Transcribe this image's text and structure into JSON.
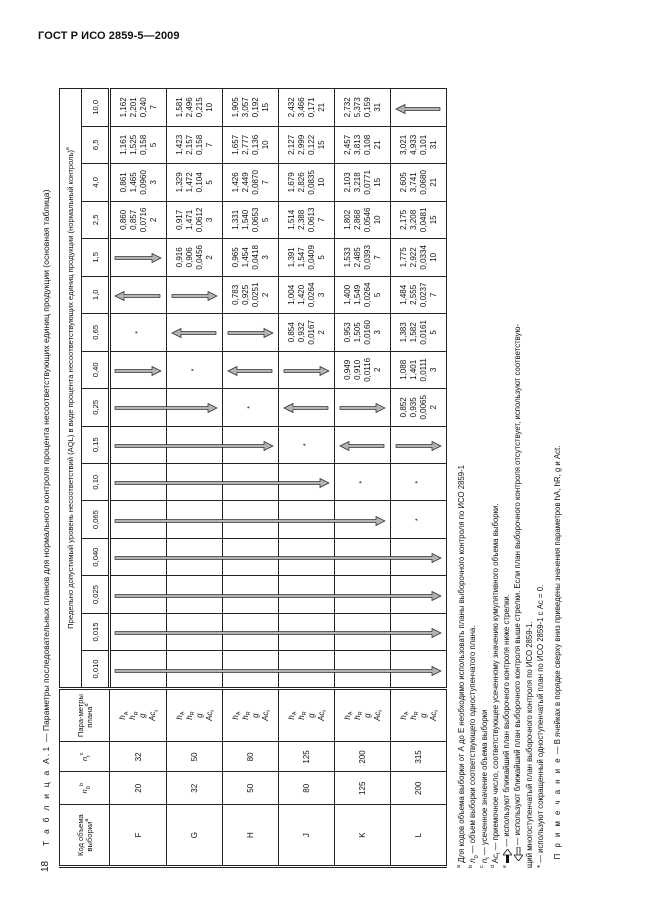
{
  "header": {
    "doc_id": "ГОСТ Р ИСО 2859-5—2009",
    "page_number": "18"
  },
  "caption": {
    "label": "Т а б л и ц а  А.1",
    "text": " — Параметры последовательных планов для нормального контроля процента несоответствующих единиц продукции (основная таблица)"
  },
  "table": {
    "head": {
      "code": "Код объема выборки",
      "code_sup": "a",
      "n0": "n",
      "n0_sub": "0",
      "n0_sup": "b",
      "nt": "n",
      "nt_sub": "t",
      "nt_sup": "c",
      "param": "Пара-метры плана",
      "param_sup": "d",
      "aql_group": "Предельно допустимый уровень несоответствий (AQL) в виде процента несоответствующих единиц продукции (нормальный контроль)",
      "aql_group_sup": "e"
    },
    "aql_values": [
      "0,010",
      "0,015",
      "0,025",
      "0,040",
      "0,065",
      "0,10",
      "0,15",
      "0,25",
      "0,40",
      "0,65",
      "1,0",
      "1,5",
      "2,5",
      "4,0",
      "6,5",
      "10,0"
    ],
    "params": [
      {
        "main": "h",
        "sub": "A"
      },
      {
        "main": "h",
        "sub": "R"
      },
      {
        "main": "g",
        "sub": ""
      },
      {
        "main": "Ac",
        "sub": "t"
      }
    ],
    "arrow_colors": {
      "fill": "#b3b3b3",
      "stroke": "#2a2a2a"
    },
    "rows": [
      {
        "code": "F",
        "n0": "20",
        "nt": "32",
        "cells": [
          "down",
          "down",
          "down",
          "down",
          "down",
          "down",
          "down",
          "down",
          "down",
          "*",
          "up",
          "down",
          [
            "0,860",
            "0,857",
            "0,0716",
            "2"
          ],
          [
            "0,861",
            "1,465",
            "0,0960",
            "3"
          ],
          [
            "1,161",
            "1,525",
            "0,158",
            "5"
          ],
          [
            "1,162",
            "2,201",
            "0,240",
            "7"
          ]
        ]
      },
      {
        "code": "G",
        "n0": "32",
        "nt": "50",
        "cells": [
          "down",
          "down",
          "down",
          "down",
          "down",
          "down",
          "down",
          "down",
          "*",
          "up",
          "down",
          [
            "0,916",
            "0,906",
            "0,0456",
            "2"
          ],
          [
            "0,917",
            "1,471",
            "0,0612",
            "3"
          ],
          [
            "1,329",
            "1,472",
            "0,104",
            "5"
          ],
          [
            "1,423",
            "2,157",
            "0,158",
            "7"
          ],
          [
            "1,581",
            "2,496",
            "0,215",
            "10"
          ]
        ]
      },
      {
        "code": "H",
        "n0": "50",
        "nt": "80",
        "cells": [
          "down",
          "down",
          "down",
          "down",
          "down",
          "down",
          "down",
          "*",
          "up",
          "down",
          [
            "0,783",
            "0,925",
            "0,0251",
            "2"
          ],
          [
            "0,965",
            "1,454",
            "0,0418",
            "3"
          ],
          [
            "1,331",
            "1,540",
            "0,0653",
            "5"
          ],
          [
            "1,426",
            "2,449",
            "0,0870",
            "7"
          ],
          [
            "1,657",
            "2,777",
            "0,136",
            "10"
          ],
          [
            "1,905",
            "3,057",
            "0,192",
            "15"
          ]
        ]
      },
      {
        "code": "J",
        "n0": "80",
        "nt": "125",
        "cells": [
          "down",
          "down",
          "down",
          "down",
          "down",
          "down",
          "*",
          "up",
          "down",
          [
            "0,854",
            "0,932",
            "0,0167",
            "2"
          ],
          [
            "1,004",
            "1,420",
            "0,0264",
            "3"
          ],
          [
            "1,391",
            "1,547",
            "0,0409",
            "5"
          ],
          [
            "1,514",
            "2,388",
            "0,0613",
            "7"
          ],
          [
            "1,679",
            "2,826",
            "0,0835",
            "10"
          ],
          [
            "2,127",
            "2,999",
            "0,122",
            "15"
          ],
          [
            "2,432",
            "3,466",
            "0,171",
            "21"
          ]
        ]
      },
      {
        "code": "K",
        "n0": "125",
        "nt": "200",
        "cells": [
          "down",
          "down",
          "down",
          "down",
          "down",
          "*",
          "up",
          "down",
          [
            "0,949",
            "0,910",
            "0,0116",
            "2"
          ],
          [
            "0,953",
            "1,505",
            "0,0160",
            "3"
          ],
          [
            "1,400",
            "1,549",
            "0,0264",
            "5"
          ],
          [
            "1,533",
            "2,485",
            "0,0393",
            "7"
          ],
          [
            "1,802",
            "2,868",
            "0,0546",
            "10"
          ],
          [
            "2,103",
            "3,218",
            "0,0771",
            "15"
          ],
          [
            "2,457",
            "3,813",
            "0,108",
            "21"
          ],
          [
            "2,732",
            "5,373",
            "0,159",
            "31"
          ]
        ]
      },
      {
        "code": "L",
        "n0": "200",
        "nt": "315",
        "cells": [
          "down",
          "down",
          "down",
          "down",
          "*",
          "*",
          "down",
          [
            "0,852",
            "0,935",
            "0,0065",
            "2"
          ],
          [
            "1,088",
            "1,401",
            "0,0111",
            "3"
          ],
          [
            "1,383",
            "1,582",
            "0,0161",
            "5"
          ],
          [
            "1,484",
            "2,555",
            "0,0237",
            "7"
          ],
          [
            "1,775",
            "2,922",
            "0,0334",
            "10"
          ],
          [
            "2,175",
            "3,208",
            "0,0481",
            "15"
          ],
          [
            "2,605",
            "3,741",
            "0,0680",
            "21"
          ],
          [
            "3,021",
            "4,933",
            "0,101",
            "31"
          ],
          "up"
        ]
      }
    ]
  },
  "notes": {
    "a": {
      "mark": "a",
      "text": " Для кодов объема выборки от А до Е необходимо использовать планы выборочного контроля по ИСО 2859-1"
    },
    "b": {
      "mark": "b",
      "sym": "n",
      "sub": "0",
      "text": " — объем выборки соответствующего одноступенчатого плана."
    },
    "c": {
      "mark": "c",
      "sym": "n",
      "sub": "t",
      "text": " — усеченное значение объема выборки"
    },
    "d": {
      "mark": "d",
      "sym": "Ac",
      "sub": "t",
      "text": " — приемочное число, соответствующее усеченному значению кумулятивного объема выборки."
    },
    "e1": {
      "mark": "e",
      "icon": "down-arrow",
      "text": " — используют ближайший план выборочного контроля ниже стрелки."
    },
    "e2": {
      "icon": "up-arrow",
      "text": " — используют ближайший план выборочного контроля выше стрелки. Если план выборочного контроля отсутствует, используют соответствую-"
    },
    "e2_cont": "щий многоступенчатый план выборочного контроля по ИСО 2859-1.",
    "star": "* — используют сокращенный одноступенчатый план по ИСО 2859-1 с Ac = 0.",
    "remark_label": "П р и м е ч а н и е",
    "remark_text": " — В ячейках в порядке сверху вниз приведены значения параметров hA, hR, g и Act."
  }
}
